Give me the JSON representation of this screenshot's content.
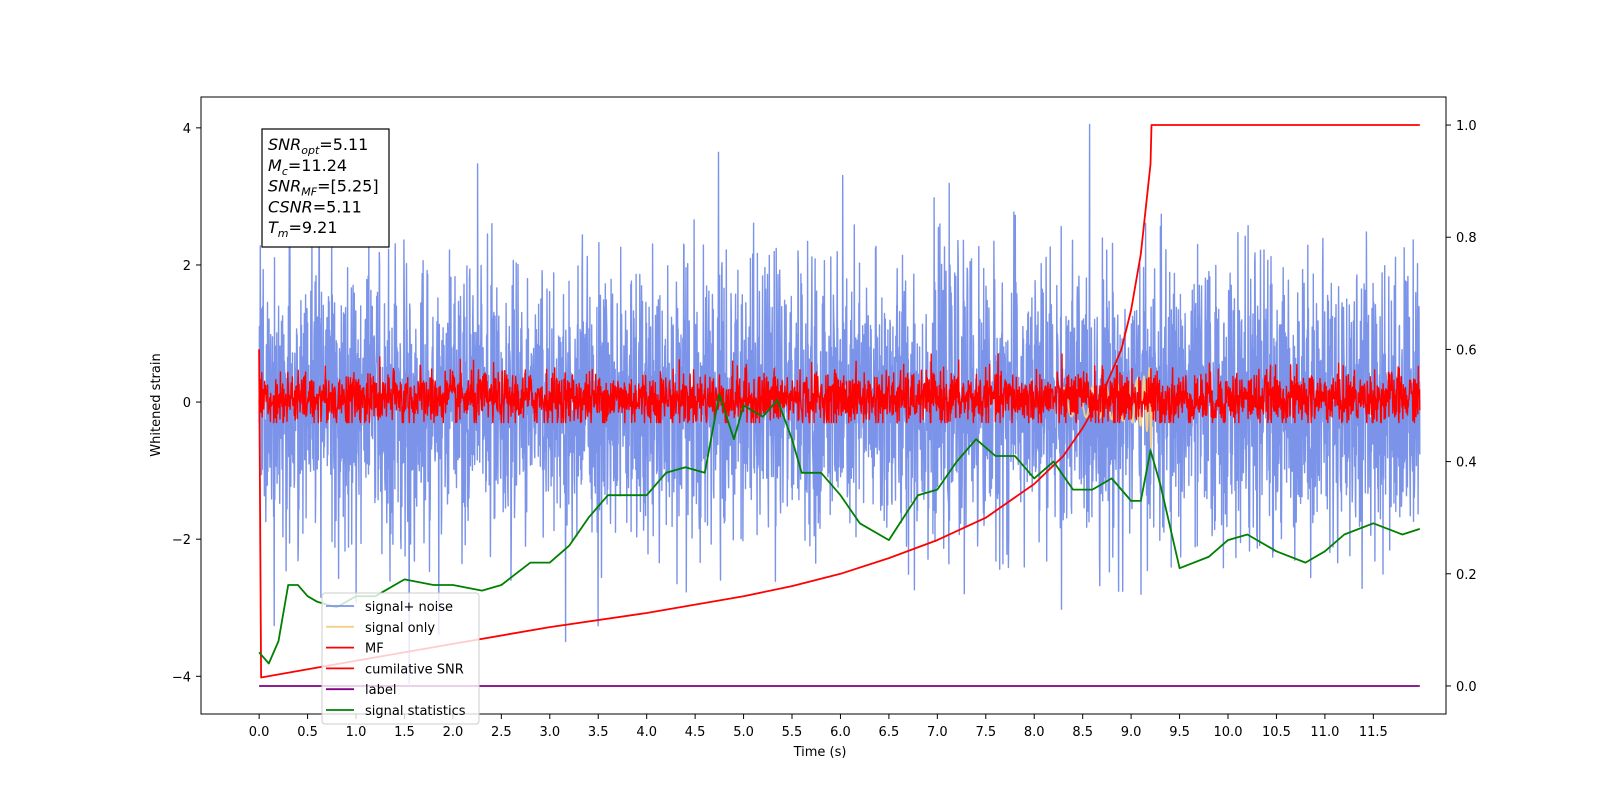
{
  "chart_data": {
    "type": "line",
    "xlabel": "Time (s)",
    "ylabel": "Whitened strain",
    "xlim": [
      -0.6,
      12.25
    ],
    "ylim": [
      -4.55,
      4.45
    ],
    "y2lim": [
      -0.05,
      1.05
    ],
    "x_ticks": [
      "0.0",
      "0.5",
      "1.0",
      "1.5",
      "2.0",
      "2.5",
      "3.0",
      "3.5",
      "4.0",
      "4.5",
      "5.0",
      "5.5",
      "6.0",
      "6.5",
      "7.0",
      "7.5",
      "8.0",
      "8.5",
      "9.0",
      "9.5",
      "10.0",
      "10.5",
      "11.0",
      "11.5"
    ],
    "y_ticks": [
      "4",
      "2",
      "0",
      "−2",
      "−4"
    ],
    "y2_ticks": [
      "1.0",
      "0.8",
      "0.6",
      "0.4",
      "0.2",
      "0.0"
    ],
    "annotation": [
      {
        "base": "SNR",
        "sub": "opt",
        "rest": "=5.11"
      },
      {
        "base": "M",
        "sub": "c",
        "rest": "=11.24"
      },
      {
        "base": "SNR",
        "sub": "MF",
        "rest": "=[5.25]"
      },
      {
        "base": "CSNR",
        "sub": "",
        "rest": "=5.11"
      },
      {
        "base": "T",
        "sub": "m",
        "rest": "=9.21"
      }
    ],
    "legend_position": "lower-left",
    "series": [
      {
        "name": "signal+ noise",
        "color": "#7b93e8",
        "axis": "left",
        "kind": "noise",
        "amplitude": 1.0,
        "range": [
          -4.1,
          4.05
        ],
        "x_range": [
          0.0,
          11.98
        ]
      },
      {
        "name": "signal only",
        "color": "#f5cf87",
        "axis": "left",
        "kind": "chirp",
        "merger_time": 9.21,
        "peak": 0.8
      },
      {
        "name": "MF",
        "color": "#ff0000",
        "axis": "left",
        "kind": "noise",
        "amplitude": 0.2,
        "range": [
          -0.3,
          0.7
        ],
        "x_range": [
          0.0,
          11.98
        ]
      },
      {
        "name": "cumilative SNR",
        "color": "#ff0000",
        "axis": "right",
        "x": [
          0.0,
          0.02,
          1.0,
          2.0,
          3.0,
          4.0,
          5.0,
          5.5,
          6.0,
          6.5,
          7.0,
          7.5,
          8.0,
          8.3,
          8.5,
          8.7,
          8.9,
          9.0,
          9.1,
          9.2,
          9.21,
          9.22,
          11.98
        ],
        "values": [
          0.6,
          0.015,
          0.045,
          0.075,
          0.105,
          0.13,
          0.16,
          0.178,
          0.2,
          0.228,
          0.26,
          0.3,
          0.36,
          0.41,
          0.46,
          0.52,
          0.6,
          0.67,
          0.77,
          0.93,
          1.0,
          1.0,
          1.0
        ]
      },
      {
        "name": "label",
        "color": "#800080",
        "axis": "right",
        "x": [
          0.0,
          11.98
        ],
        "values": [
          0.0,
          0.0
        ]
      },
      {
        "name": "signal statistics",
        "color": "#008000",
        "axis": "right",
        "x": [
          0.0,
          0.1,
          0.2,
          0.3,
          0.4,
          0.5,
          0.6,
          0.8,
          1.0,
          1.2,
          1.5,
          1.8,
          2.0,
          2.3,
          2.5,
          2.8,
          3.0,
          3.2,
          3.4,
          3.6,
          3.8,
          4.0,
          4.2,
          4.4,
          4.6,
          4.75,
          4.9,
          5.0,
          5.2,
          5.35,
          5.5,
          5.6,
          5.8,
          6.0,
          6.2,
          6.5,
          6.8,
          7.0,
          7.2,
          7.4,
          7.6,
          7.8,
          8.0,
          8.2,
          8.4,
          8.6,
          8.8,
          9.0,
          9.1,
          9.2,
          9.3,
          9.5,
          9.8,
          10.0,
          10.2,
          10.5,
          10.8,
          11.0,
          11.2,
          11.5,
          11.8,
          11.98
        ],
        "values": [
          0.06,
          0.04,
          0.08,
          0.18,
          0.18,
          0.16,
          0.15,
          0.14,
          0.16,
          0.16,
          0.19,
          0.18,
          0.18,
          0.17,
          0.18,
          0.22,
          0.22,
          0.25,
          0.3,
          0.34,
          0.34,
          0.34,
          0.38,
          0.39,
          0.38,
          0.52,
          0.44,
          0.5,
          0.48,
          0.51,
          0.44,
          0.38,
          0.38,
          0.34,
          0.29,
          0.26,
          0.34,
          0.35,
          0.4,
          0.44,
          0.41,
          0.41,
          0.37,
          0.4,
          0.35,
          0.35,
          0.37,
          0.33,
          0.33,
          0.42,
          0.36,
          0.21,
          0.23,
          0.26,
          0.27,
          0.24,
          0.22,
          0.24,
          0.27,
          0.29,
          0.27,
          0.28
        ]
      }
    ]
  }
}
